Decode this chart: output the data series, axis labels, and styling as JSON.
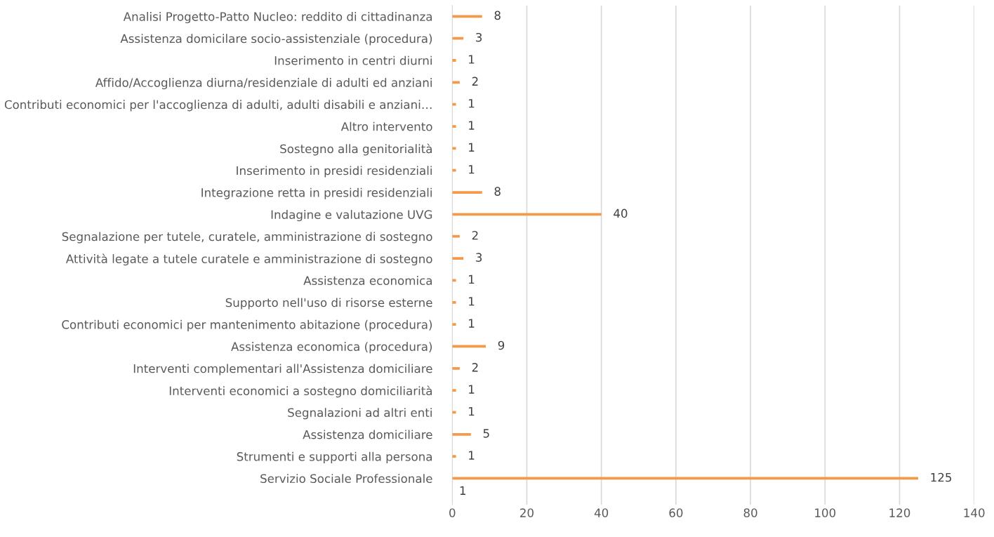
{
  "chart_data": {
    "type": "bar",
    "orientation": "horizontal",
    "categories": [
      "Analisi Progetto-Patto Nucleo: reddito di cittadinanza",
      "Assistenza domicilare socio-assistenziale (procedura)",
      "Inserimento in centri diurni",
      "Affido/Accoglienza diurna/residenziale di adulti ed anziani",
      "Contributi economici per l'accoglienza di adulti, adulti disabili e anziani…",
      "Altro intervento",
      "Sostegno alla genitorialità",
      "Inserimento in presidi residenziali",
      "Integrazione retta in presidi residenziali",
      "Indagine e valutazione UVG",
      "Segnalazione per tutele, curatele, amministrazione di sostegno",
      "Attività legate a tutele curatele e amministrazione di sostegno",
      "Assistenza economica",
      "Supporto nell'uso di risorse esterne",
      "Contributi economici per mantenimento abitazione (procedura)",
      "Assistenza economica (procedura)",
      "Interventi complementari all'Assistenza domiciliare",
      "Interventi economici a sostegno domiciliarità",
      "Segnalazioni ad altri enti",
      "Assistenza domiciliare",
      "Strumenti e supporti alla persona",
      "Servizio Sociale Professionale"
    ],
    "values": [
      8,
      3,
      1,
      2,
      1,
      1,
      1,
      1,
      8,
      40,
      2,
      3,
      1,
      1,
      1,
      9,
      2,
      1,
      1,
      5,
      1,
      125
    ],
    "color": "#f4994a",
    "xlim": [
      0,
      140
    ],
    "xticks": [
      0,
      20,
      40,
      60,
      80,
      100,
      120,
      140
    ],
    "grid": "x",
    "data_labels": true,
    "annotations": [
      "1"
    ]
  }
}
